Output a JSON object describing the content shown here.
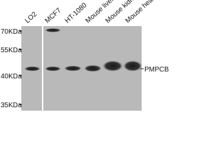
{
  "lanes": [
    "LO2",
    "MCF7",
    "HT-1080",
    "Mouse liver",
    "Mouse kidney",
    "Mouse heart"
  ],
  "markers": [
    "70KDa",
    "55KDa",
    "40KDa",
    "35KDa"
  ],
  "protein": "PMPCB"
}
